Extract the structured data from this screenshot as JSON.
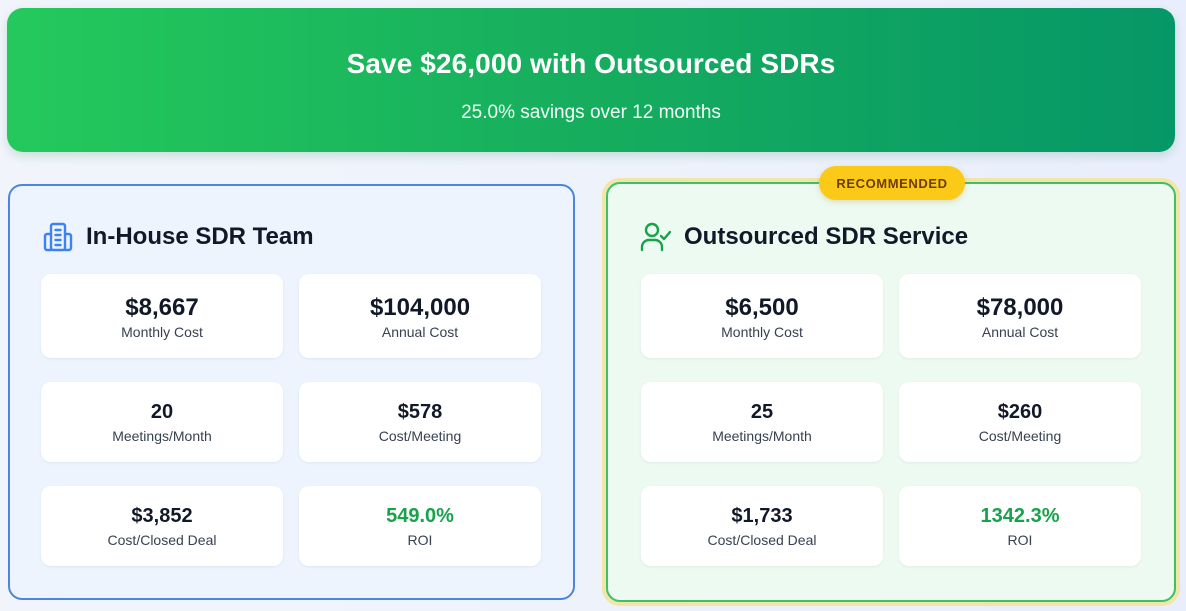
{
  "hero": {
    "title": "Save $26,000 with Outsourced SDRs",
    "subtitle": "25.0% savings over 12 months"
  },
  "inhouse": {
    "title": "In-House SDR Team",
    "icon": "building-icon",
    "metrics": [
      {
        "value": "$8,667",
        "label": "Monthly Cost"
      },
      {
        "value": "$104,000",
        "label": "Annual Cost"
      },
      {
        "value": "20",
        "label": "Meetings/Month"
      },
      {
        "value": "$578",
        "label": "Cost/Meeting"
      },
      {
        "value": "$3,852",
        "label": "Cost/Closed Deal"
      },
      {
        "value": "549.0%",
        "label": "ROI"
      }
    ]
  },
  "outsourced": {
    "badge": "RECOMMENDED",
    "title": "Outsourced SDR Service",
    "icon": "user-check-icon",
    "metrics": [
      {
        "value": "$6,500",
        "label": "Monthly Cost"
      },
      {
        "value": "$78,000",
        "label": "Annual Cost"
      },
      {
        "value": "25",
        "label": "Meetings/Month"
      },
      {
        "value": "$260",
        "label": "Cost/Meeting"
      },
      {
        "value": "$1,733",
        "label": "Cost/Closed Deal"
      },
      {
        "value": "1342.3%",
        "label": "ROI"
      }
    ]
  },
  "colors": {
    "hero_start": "#24c95c",
    "hero_end": "#069767",
    "inhouse_accent": "#4a86e0",
    "outsourced_accent": "#3cc06a",
    "badge": "#fbca19",
    "roi": "#16a34a"
  }
}
